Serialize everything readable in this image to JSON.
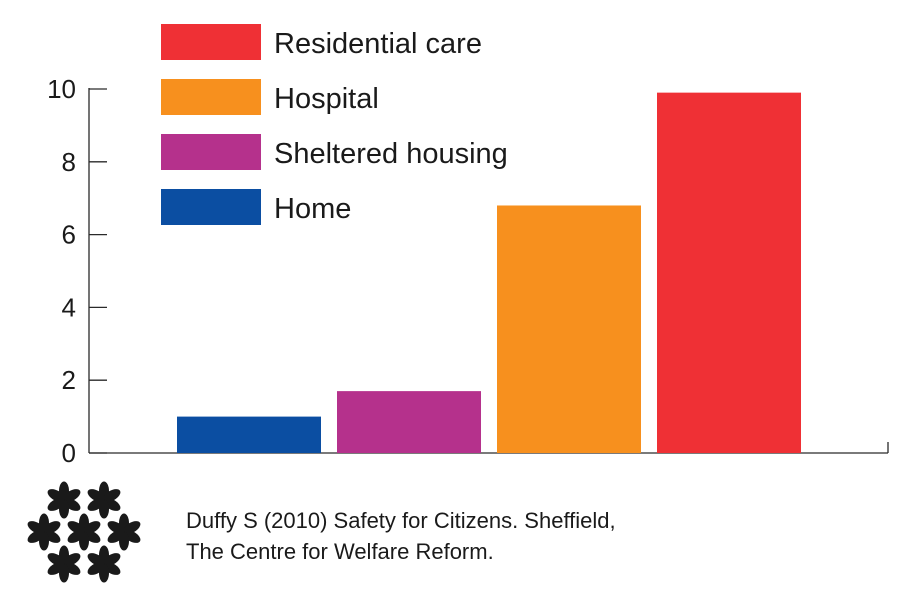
{
  "chart_data": {
    "type": "bar",
    "title": "",
    "xlabel": "",
    "ylabel": "",
    "ylim": [
      0,
      10
    ],
    "yticks": [
      0,
      2,
      4,
      6,
      8,
      10
    ],
    "categories": [
      "Home",
      "Sheltered housing",
      "Hospital",
      "Residential care"
    ],
    "values": [
      1.0,
      1.7,
      6.8,
      9.9
    ],
    "colors": [
      "#0b4ea2",
      "#b5318c",
      "#f7901e",
      "#ef3035"
    ],
    "legend": {
      "placement": "top-left",
      "entries": [
        {
          "label": "Residential care",
          "color": "#ef3035"
        },
        {
          "label": "Hospital",
          "color": "#f7901e"
        },
        {
          "label": "Sheltered housing",
          "color": "#b5318c"
        },
        {
          "label": "Home",
          "color": "#0b4ea2"
        }
      ]
    },
    "grid": false
  },
  "citation": {
    "line1": "Duffy S (2010) Safety for Citizens. Sheffield,",
    "line2": "The Centre for Welfare Reform."
  },
  "logo": {
    "icon": "flower-cluster-icon",
    "color": "#1a1a1a"
  }
}
